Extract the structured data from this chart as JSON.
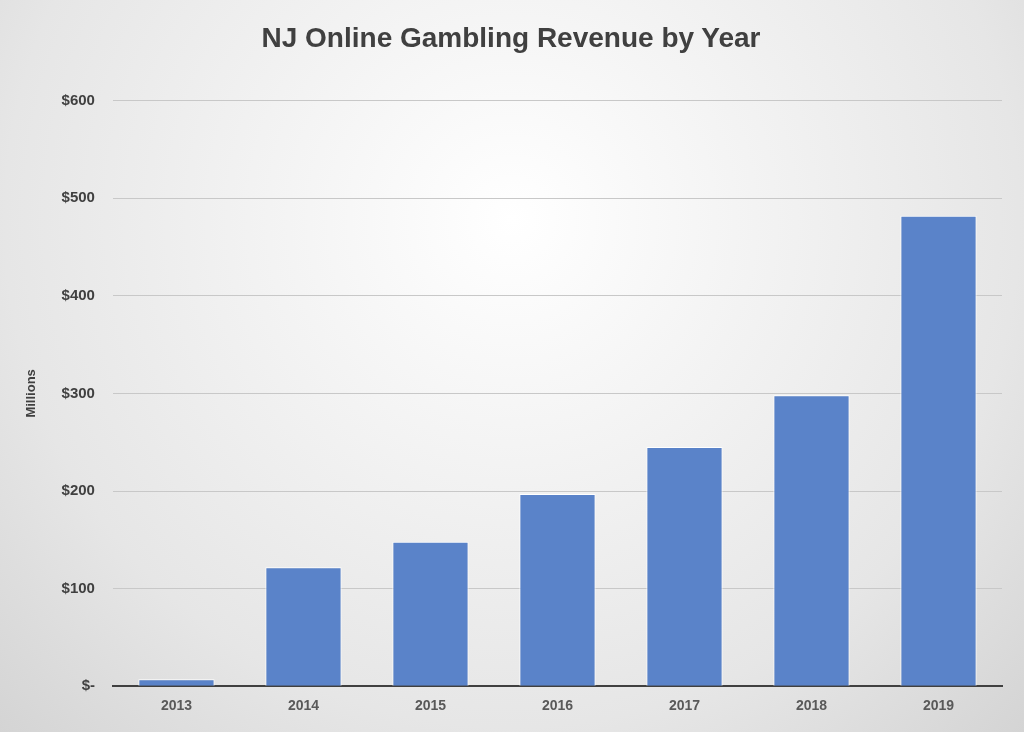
{
  "chart_data": {
    "type": "bar",
    "title": "NJ Online Gambling Revenue by Year",
    "ylabel": "Millions",
    "categories": [
      "2013",
      "2014",
      "2015",
      "2016",
      "2017",
      "2018",
      "2019"
    ],
    "values": [
      7,
      122,
      148,
      197,
      245,
      298,
      482
    ],
    "color": "#5a83c9",
    "ylim": [
      0,
      600
    ],
    "yticks": [
      {
        "value": 0,
        "label": "$-"
      },
      {
        "value": 100,
        "label": "$100"
      },
      {
        "value": 200,
        "label": "$200"
      },
      {
        "value": 300,
        "label": "$300"
      },
      {
        "value": 400,
        "label": "$400"
      },
      {
        "value": 500,
        "label": "$500"
      },
      {
        "value": 600,
        "label": "$600"
      }
    ],
    "grid": "y",
    "legend": false
  }
}
